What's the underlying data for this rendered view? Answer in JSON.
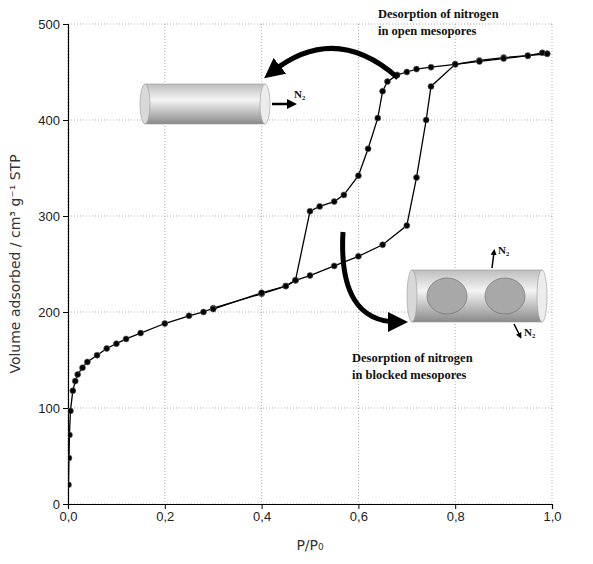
{
  "chart_data": {
    "type": "line",
    "xlabel": "P/P₀",
    "ylabel": "Volume adsorbed / cm³ g⁻¹ STP",
    "xlim": [
      0,
      1
    ],
    "ylim": [
      0,
      500
    ],
    "xticks": [
      {
        "value": 0,
        "label": "0,0"
      },
      {
        "value": 0.2,
        "label": "0,2"
      },
      {
        "value": 0.4,
        "label": "0,4"
      },
      {
        "value": 0.6,
        "label": "0,6"
      },
      {
        "value": 0.8,
        "label": "0,8"
      },
      {
        "value": 1,
        "label": "1,0"
      }
    ],
    "yticks": [
      0,
      100,
      200,
      300,
      400,
      500
    ],
    "grid": true,
    "series": [
      {
        "color": "#000000",
        "marker": "circle",
        "line_style": "solid",
        "x": [
          0.001,
          0.002,
          0.003,
          0.005,
          0.01,
          0.015,
          0.02,
          0.03,
          0.04,
          0.06,
          0.08,
          0.1,
          0.12,
          0.15,
          0.2,
          0.25,
          0.28,
          0.3,
          0.4,
          0.45,
          0.47,
          0.5,
          0.55,
          0.6,
          0.65,
          0.7,
          0.72,
          0.74,
          0.75,
          0.8,
          0.85,
          0.9,
          0.95,
          0.98,
          0.99
        ],
        "values": [
          20,
          48,
          72,
          97,
          118,
          128,
          135,
          142,
          148,
          155,
          162,
          167,
          172,
          178,
          188,
          196,
          200,
          204,
          219,
          227,
          233,
          238,
          248,
          258,
          270,
          290,
          340,
          400,
          435,
          458,
          462,
          465,
          467,
          470,
          469
        ]
      },
      {
        "color": "#000000",
        "marker": "circle",
        "line_style": "solid",
        "x": [
          0.99,
          0.95,
          0.9,
          0.85,
          0.8,
          0.75,
          0.72,
          0.7,
          0.68,
          0.66,
          0.65,
          0.64,
          0.62,
          0.6,
          0.57,
          0.55,
          0.52,
          0.5,
          0.47,
          0.45,
          0.4,
          0.3
        ],
        "values": [
          469,
          467,
          464,
          461,
          458,
          455,
          453,
          450,
          447,
          440,
          430,
          402,
          370,
          342,
          322,
          315,
          310,
          305,
          233,
          227,
          220,
          203
        ]
      }
    ],
    "annotations": [
      {
        "lines": [
          "Desorption of nitrogen",
          "in open mesopores"
        ]
      },
      {
        "lines": [
          "Desorption of nitrogen",
          "in blocked mesopores"
        ]
      },
      {
        "lines": [
          "N₂"
        ]
      },
      {
        "lines": [
          "N₂"
        ]
      },
      {
        "lines": [
          "N₂"
        ]
      }
    ]
  }
}
